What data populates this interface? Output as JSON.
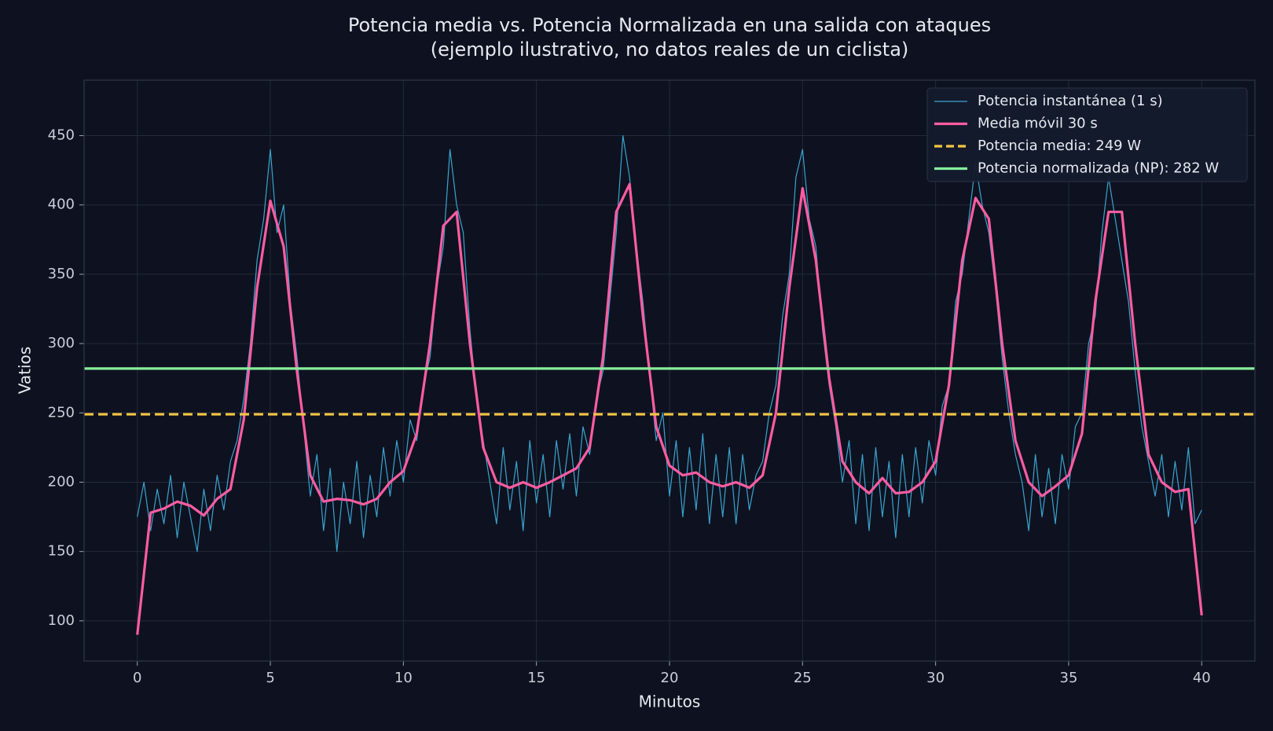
{
  "chart_data": {
    "type": "line",
    "title": "Potencia media vs. Potencia Normalizada en una salida con ataques",
    "subtitle": "(ejemplo ilustrativo, no datos reales de un ciclista)",
    "x_label": "Minutos",
    "y_label": "Vatios",
    "xlim": [
      -2,
      42
    ],
    "xticks": [
      0,
      5,
      10,
      15,
      20,
      25,
      30,
      35,
      40
    ],
    "ylim": [
      71,
      490
    ],
    "yticks": [
      100,
      150,
      200,
      250,
      300,
      350,
      400,
      450
    ],
    "grid": true,
    "legend": "upper right",
    "series": [
      {
        "name": "Potencia instantánea (1 s)",
        "color": "#3ba3cf",
        "width": 1.2,
        "x": [
          0,
          0.25,
          0.5,
          0.75,
          1,
          1.25,
          1.5,
          1.75,
          2,
          2.25,
          2.5,
          2.75,
          3,
          3.25,
          3.5,
          3.75,
          4,
          4.25,
          4.5,
          4.75,
          5,
          5.25,
          5.5,
          5.75,
          6,
          6.25,
          6.5,
          6.75,
          7,
          7.25,
          7.5,
          7.75,
          8,
          8.25,
          8.5,
          8.75,
          9,
          9.25,
          9.5,
          9.75,
          10,
          10.25,
          10.5,
          10.75,
          11,
          11.25,
          11.5,
          11.75,
          12,
          12.25,
          12.5,
          12.75,
          13,
          13.25,
          13.5,
          13.75,
          14,
          14.25,
          14.5,
          14.75,
          15,
          15.25,
          15.5,
          15.75,
          16,
          16.25,
          16.5,
          16.75,
          17,
          17.25,
          17.5,
          17.75,
          18,
          18.25,
          18.5,
          18.75,
          19,
          19.25,
          19.5,
          19.75,
          20,
          20.25,
          20.5,
          20.75,
          21,
          21.25,
          21.5,
          21.75,
          22,
          22.25,
          22.5,
          22.75,
          23,
          23.25,
          23.5,
          23.75,
          24,
          24.25,
          24.5,
          24.75,
          25,
          25.25,
          25.5,
          25.75,
          26,
          26.25,
          26.5,
          26.75,
          27,
          27.25,
          27.5,
          27.75,
          28,
          28.25,
          28.5,
          28.75,
          29,
          29.25,
          29.5,
          29.75,
          30,
          30.25,
          30.5,
          30.75,
          31,
          31.25,
          31.5,
          31.75,
          32,
          32.25,
          32.5,
          32.75,
          33,
          33.25,
          33.5,
          33.75,
          34,
          34.25,
          34.5,
          34.75,
          35,
          35.25,
          35.5,
          35.75,
          36,
          36.25,
          36.5,
          36.75,
          37,
          37.25,
          37.5,
          37.75,
          38,
          38.25,
          38.5,
          38.75,
          39,
          39.25,
          39.5,
          39.75,
          40
        ],
        "values": [
          175,
          200,
          165,
          195,
          170,
          205,
          160,
          200,
          175,
          150,
          195,
          165,
          205,
          180,
          215,
          230,
          260,
          300,
          360,
          390,
          440,
          380,
          400,
          330,
          290,
          240,
          190,
          220,
          165,
          210,
          150,
          200,
          170,
          215,
          160,
          205,
          175,
          225,
          190,
          230,
          200,
          245,
          230,
          270,
          290,
          340,
          370,
          440,
          400,
          380,
          310,
          260,
          230,
          200,
          170,
          225,
          180,
          215,
          165,
          230,
          185,
          220,
          175,
          230,
          195,
          235,
          190,
          240,
          220,
          260,
          280,
          330,
          380,
          450,
          420,
          370,
          330,
          280,
          230,
          250,
          190,
          230,
          175,
          225,
          180,
          235,
          170,
          220,
          175,
          225,
          170,
          220,
          180,
          205,
          215,
          250,
          270,
          320,
          350,
          420,
          440,
          390,
          370,
          310,
          270,
          240,
          200,
          230,
          170,
          220,
          165,
          225,
          175,
          215,
          160,
          220,
          175,
          225,
          185,
          230,
          205,
          255,
          270,
          330,
          350,
          390,
          430,
          400,
          380,
          340,
          290,
          250,
          220,
          200,
          165,
          220,
          175,
          210,
          170,
          220,
          195,
          240,
          250,
          300,
          320,
          380,
          420,
          390,
          360,
          330,
          280,
          240,
          215,
          190,
          220,
          175,
          215,
          180,
          225,
          170,
          180
        ]
      },
      {
        "name": "Media móvil 30 s",
        "color": "#ff5ca1",
        "width": 3.2,
        "x": [
          0,
          0.5,
          1,
          1.5,
          2,
          2.5,
          3,
          3.5,
          4,
          4.5,
          5,
          5.5,
          6,
          6.5,
          7,
          7.5,
          8,
          8.5,
          9,
          9.5,
          10,
          10.5,
          11,
          11.5,
          12,
          12.5,
          13,
          13.5,
          14,
          14.5,
          15,
          15.5,
          16,
          16.5,
          17,
          17.5,
          18,
          18.5,
          19,
          19.5,
          20,
          20.5,
          21,
          21.5,
          22,
          22.5,
          23,
          23.5,
          24,
          24.5,
          25,
          25.5,
          26,
          26.5,
          27,
          27.5,
          28,
          28.5,
          29,
          29.5,
          30,
          30.5,
          31,
          31.5,
          32,
          32.5,
          33,
          33.5,
          34,
          34.5,
          35,
          35.5,
          36,
          36.5,
          37,
          37.5,
          38,
          38.5,
          39,
          39.5,
          40
        ],
        "values": [
          90,
          178,
          181,
          186,
          183,
          176,
          188,
          195,
          245,
          340,
          403,
          370,
          280,
          205,
          186,
          188,
          187,
          184,
          188,
          200,
          208,
          235,
          300,
          385,
          395,
          300,
          225,
          200,
          196,
          200,
          196,
          200,
          205,
          210,
          225,
          290,
          395,
          415,
          320,
          240,
          212,
          205,
          207,
          200,
          197,
          200,
          196,
          205,
          250,
          340,
          412,
          360,
          275,
          215,
          200,
          192,
          203,
          192,
          193,
          200,
          215,
          270,
          360,
          405,
          390,
          300,
          230,
          200,
          190,
          197,
          205,
          235,
          330,
          395,
          395,
          300,
          220,
          200,
          193,
          195,
          104
        ]
      }
    ],
    "hlines": [
      {
        "name": "Potencia media: 249 W",
        "value": 249,
        "color": "#f5c542",
        "style": "dashed"
      },
      {
        "name": "Potencia normalizada (NP): 282 W",
        "value": 282,
        "color": "#86ef9c",
        "style": "solid"
      }
    ]
  }
}
